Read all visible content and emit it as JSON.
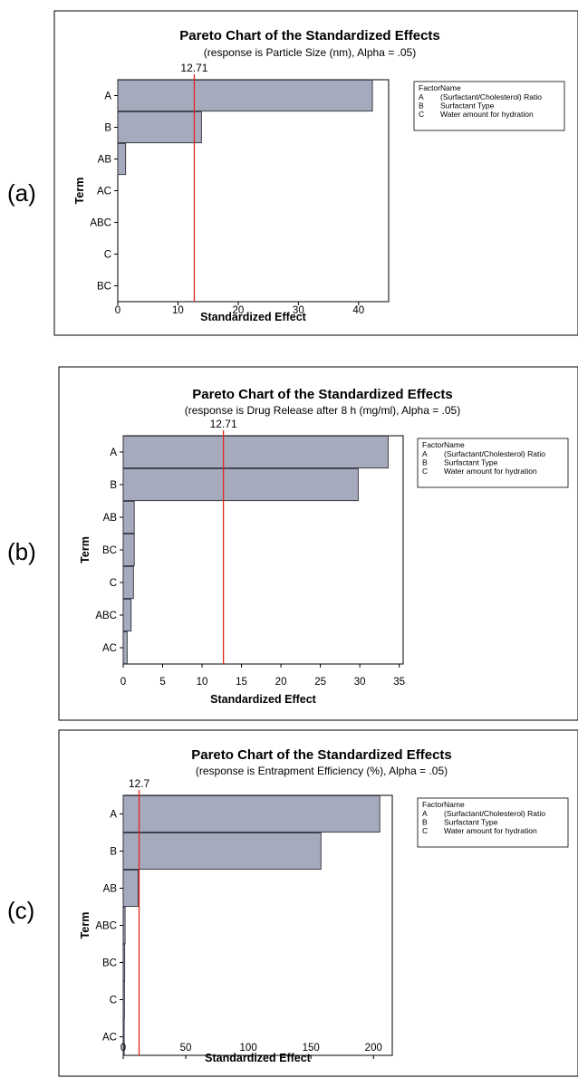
{
  "colors": {
    "bar_fill": "#a5aabd",
    "bar_stroke": "#2f2f3a",
    "ref_line": "#e0261f",
    "frame": "#000000"
  },
  "chart_data": [
    {
      "panel_label": "(a)",
      "type": "bar",
      "orientation": "horizontal",
      "title": "Pareto Chart of the Standardized Effects",
      "subtitle": "(response is Particle Size (nm), Alpha = .05)",
      "xlabel": "Standardized Effect",
      "ylabel": "Term",
      "categories": [
        "A",
        "B",
        "AB",
        "AC",
        "ABC",
        "C",
        "BC"
      ],
      "values": [
        42.3,
        13.9,
        1.3,
        0.0,
        0.0,
        0.0,
        0.0
      ],
      "xlim": [
        0,
        45
      ],
      "xticks": [
        0,
        10,
        20,
        30,
        40
      ],
      "reference_line": 12.71,
      "reference_label": "12.71",
      "legend": {
        "header": [
          "Factor",
          "Name"
        ],
        "rows": [
          [
            "A",
            "(Surfactant/Cholesterol) Ratio"
          ],
          [
            "B",
            "Surfactant Type"
          ],
          [
            "C",
            "Water amount for hydration"
          ]
        ]
      }
    },
    {
      "panel_label": "(b)",
      "type": "bar",
      "orientation": "horizontal",
      "title": "Pareto Chart of the Standardized Effects",
      "subtitle": "(response is Drug Release after 8 h (mg/ml), Alpha = .05)",
      "xlabel": "Standardized Effect",
      "ylabel": "Term",
      "categories": [
        "A",
        "B",
        "AB",
        "BC",
        "C",
        "ABC",
        "AC"
      ],
      "values": [
        33.6,
        29.8,
        1.4,
        1.4,
        1.3,
        1.0,
        0.5
      ],
      "xlim": [
        0,
        35.5
      ],
      "xticks": [
        0,
        5,
        10,
        15,
        20,
        25,
        30,
        35
      ],
      "reference_line": 12.71,
      "reference_label": "12.71",
      "legend": {
        "header": [
          "Factor",
          "Name"
        ],
        "rows": [
          [
            "A",
            "(Surfactant/Cholesterol) Ratio"
          ],
          [
            "B",
            "Surfactant Type"
          ],
          [
            "C",
            "Water amount for hydration"
          ]
        ]
      }
    },
    {
      "panel_label": "(c)",
      "type": "bar",
      "orientation": "horizontal",
      "title": "Pareto Chart of the Standardized Effects",
      "subtitle": "(response is Entrapment Efficiency (%), Alpha = .05)",
      "xlabel": "Standardized Effect",
      "ylabel": "Term",
      "categories": [
        "A",
        "B",
        "AB",
        "ABC",
        "BC",
        "C",
        "AC"
      ],
      "values": [
        205,
        158,
        12,
        1.5,
        1.2,
        1.0,
        0.8
      ],
      "xlim": [
        0,
        215
      ],
      "xticks": [
        0,
        50,
        100,
        150,
        200
      ],
      "reference_line": 12.7,
      "reference_label": "12.7",
      "legend": {
        "header": [
          "Factor",
          "Name"
        ],
        "rows": [
          [
            "A",
            "(Surfactant/Cholesterol) Ratio"
          ],
          [
            "B",
            "Surfactant Type"
          ],
          [
            "C",
            "Water amount for hydration"
          ]
        ]
      }
    }
  ]
}
